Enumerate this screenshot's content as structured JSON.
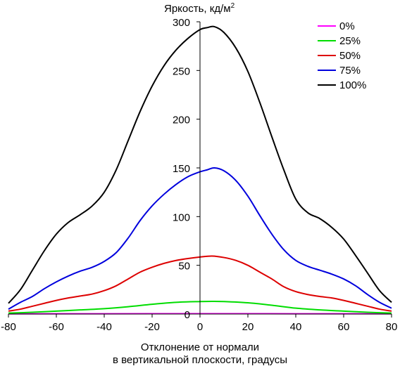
{
  "chart_data": {
    "type": "line",
    "title": "Яркость, кд/м",
    "title_sup": "2",
    "xlabel_line1": "Отклонение от нормали",
    "xlabel_line2": "в вертикальной плоскости, градусы",
    "xlim": [
      -80,
      80
    ],
    "ylim": [
      0,
      300
    ],
    "xticks": [
      -80,
      -60,
      -40,
      -20,
      0,
      20,
      40,
      60,
      80
    ],
    "yticks": [
      0,
      50,
      100,
      150,
      200,
      250,
      300
    ],
    "grid": false,
    "legend_position": "top-right",
    "series": [
      {
        "name": "0%",
        "color": "#ff00ff",
        "x": [
          -80,
          -40,
          0,
          40,
          80
        ],
        "y": [
          0.2,
          0.3,
          0.4,
          0.3,
          0.2
        ]
      },
      {
        "name": "25%",
        "color": "#00dd00",
        "x": [
          -80,
          -70,
          -60,
          -50,
          -40,
          -30,
          -20,
          -10,
          0,
          5,
          10,
          20,
          30,
          40,
          50,
          60,
          70,
          80
        ],
        "y": [
          1,
          1.8,
          3,
          4.2,
          5.5,
          7.5,
          10,
          12,
          12.8,
          13,
          12.8,
          11.5,
          9,
          6,
          4.2,
          3,
          1.8,
          1
        ]
      },
      {
        "name": "50%",
        "color": "#dd0000",
        "x": [
          -80,
          -75,
          -70,
          -65,
          -60,
          -55,
          -50,
          -45,
          -40,
          -35,
          -30,
          -25,
          -20,
          -15,
          -10,
          -5,
          0,
          5,
          10,
          15,
          20,
          25,
          30,
          35,
          40,
          45,
          50,
          55,
          60,
          65,
          70,
          75,
          80
        ],
        "y": [
          3,
          5,
          8,
          11,
          14,
          16.5,
          18.5,
          20.5,
          24,
          29,
          36,
          43,
          48,
          52,
          55,
          57,
          58.5,
          59.5,
          58,
          55,
          50,
          43,
          36,
          28,
          23,
          20,
          18,
          16.5,
          14,
          11,
          8,
          5,
          3
        ]
      },
      {
        "name": "75%",
        "color": "#0000dd",
        "x": [
          -80,
          -75,
          -70,
          -65,
          -60,
          -55,
          -50,
          -45,
          -40,
          -35,
          -30,
          -25,
          -20,
          -15,
          -10,
          -5,
          0,
          3,
          6,
          10,
          15,
          20,
          25,
          30,
          35,
          40,
          45,
          50,
          55,
          60,
          65,
          70,
          75,
          80
        ],
        "y": [
          5,
          12,
          18,
          26,
          33,
          39,
          44,
          48,
          54,
          63,
          78,
          96,
          111,
          123,
          133,
          141,
          146,
          148,
          150,
          147,
          137,
          121,
          101,
          82,
          66,
          55,
          49,
          45,
          41,
          36,
          29,
          20,
          12,
          6
        ]
      },
      {
        "name": "100%",
        "color": "#000000",
        "x": [
          -80,
          -75,
          -70,
          -65,
          -60,
          -55,
          -50,
          -45,
          -40,
          -35,
          -30,
          -25,
          -20,
          -15,
          -10,
          -5,
          0,
          3,
          6,
          10,
          15,
          20,
          25,
          30,
          35,
          40,
          45,
          50,
          55,
          60,
          65,
          70,
          75,
          80
        ],
        "y": [
          11,
          25,
          45,
          65,
          82,
          94,
          102,
          111,
          125,
          148,
          178,
          208,
          234,
          255,
          271,
          283,
          292,
          294,
          295,
          289,
          273,
          249,
          217,
          182,
          148,
          118,
          104,
          98,
          89,
          77,
          60,
          42,
          24,
          12
        ]
      }
    ]
  }
}
